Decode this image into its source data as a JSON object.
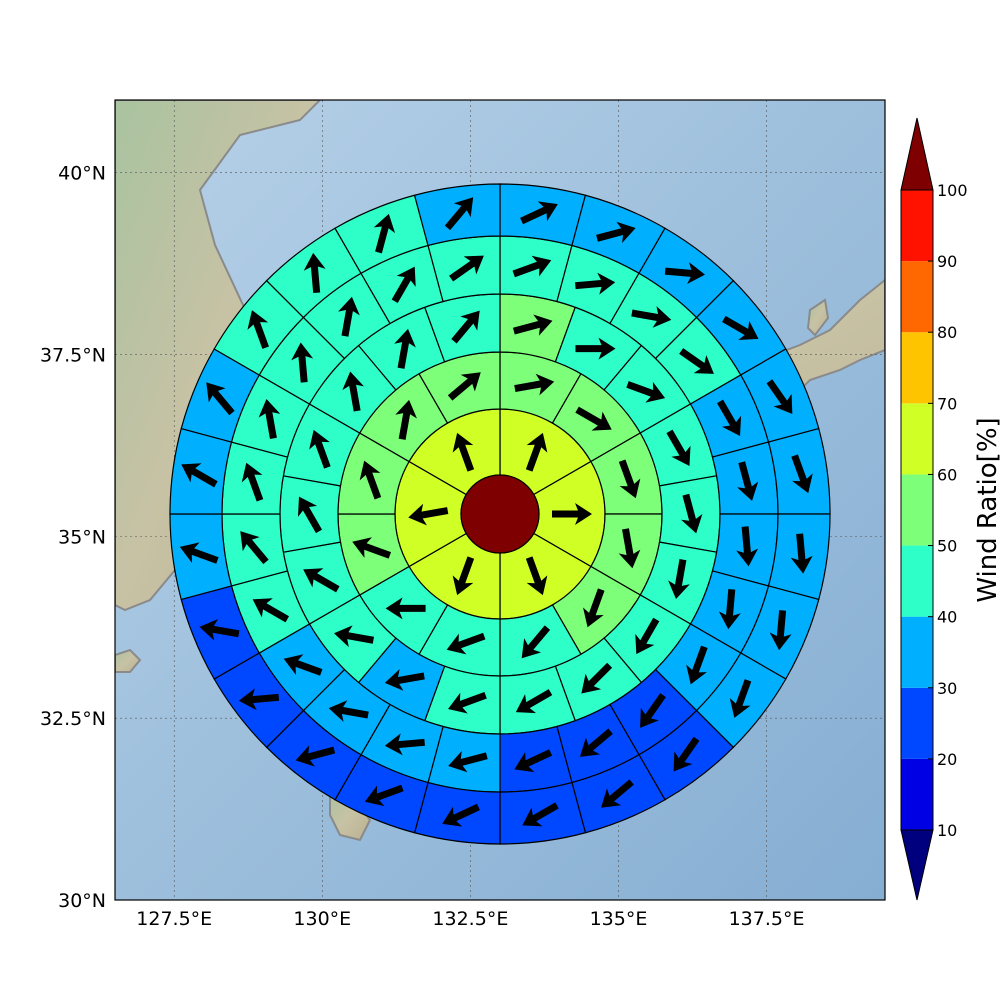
{
  "chart_data": {
    "type": "polar-sector-map",
    "title": "",
    "colorbar_label": "Wind Ratio[%]",
    "colorbar": {
      "levels": [
        0,
        10,
        20,
        30,
        40,
        50,
        60,
        70,
        80,
        90,
        100,
        110
      ],
      "tick_labels": [
        "10",
        "20",
        "30",
        "40",
        "50",
        "60",
        "70",
        "80",
        "90",
        "100"
      ],
      "colors": [
        "#00007f",
        "#0000e4",
        "#0048ff",
        "#00b0ff",
        "#2effc8",
        "#7dff7a",
        "#d0ff26",
        "#ffc400",
        "#ff6800",
        "#ff1300",
        "#7f0000"
      ],
      "extend": "both"
    },
    "x_ticks": [
      "127.5°E",
      "130°E",
      "132.5°E",
      "135°E",
      "137.5°E"
    ],
    "y_ticks": [
      "40°N",
      "37.5°N",
      "35°N",
      "32.5°N",
      "30°N"
    ],
    "extent": {
      "lon": [
        126.5,
        139.5
      ],
      "lat": [
        30,
        41
      ]
    },
    "center": {
      "lon": 133,
      "lat": 35.4
    },
    "grid": true,
    "center_value": 105,
    "rings": [
      {
        "ring": 1,
        "values": [
          62,
          62,
          62,
          62,
          62,
          62
        ]
      },
      {
        "ring": 2,
        "values": [
          57,
          57,
          57,
          57,
          52,
          45,
          45,
          45,
          50,
          57,
          57,
          57
        ]
      },
      {
        "ring": 3,
        "values": [
          52,
          48,
          45,
          45,
          45,
          45,
          45,
          45,
          45,
          42,
          38,
          42,
          45,
          45,
          45,
          45,
          45,
          48
        ]
      },
      {
        "ring": 4,
        "values": [
          45,
          45,
          45,
          42,
          38,
          38,
          38,
          38,
          35,
          28,
          25,
          28,
          38,
          38,
          38,
          38,
          42,
          45,
          45,
          45,
          45,
          45,
          45,
          45
        ]
      },
      {
        "ring": 5,
        "values": [
          35,
          35,
          35,
          35,
          35,
          35,
          35,
          35,
          35,
          25,
          25,
          25,
          25,
          25,
          25,
          25,
          25,
          35,
          35,
          35,
          45,
          45,
          45,
          35
        ]
      }
    ],
    "wind_directions_deg": {
      "ring1": [
        20,
        90,
        160,
        200,
        260,
        340
      ],
      "ring2": [
        80,
        120,
        160,
        170,
        200,
        220,
        250,
        270,
        290,
        340,
        10,
        50
      ],
      "ring3": [
        75,
        90,
        110,
        150,
        165,
        190,
        210,
        225,
        240,
        250,
        260,
        280,
        300,
        330,
        340,
        350,
        10,
        40
      ],
      "ring4": [
        70,
        85,
        100,
        125,
        150,
        165,
        175,
        185,
        200,
        215,
        230,
        245,
        255,
        265,
        280,
        290,
        300,
        320,
        340,
        350,
        355,
        10,
        30,
        55
      ],
      "ring5": [
        65,
        75,
        95,
        120,
        145,
        160,
        175,
        185,
        200,
        215,
        230,
        240,
        245,
        250,
        255,
        265,
        280,
        290,
        300,
        320,
        340,
        355,
        15,
        40
      ]
    }
  }
}
